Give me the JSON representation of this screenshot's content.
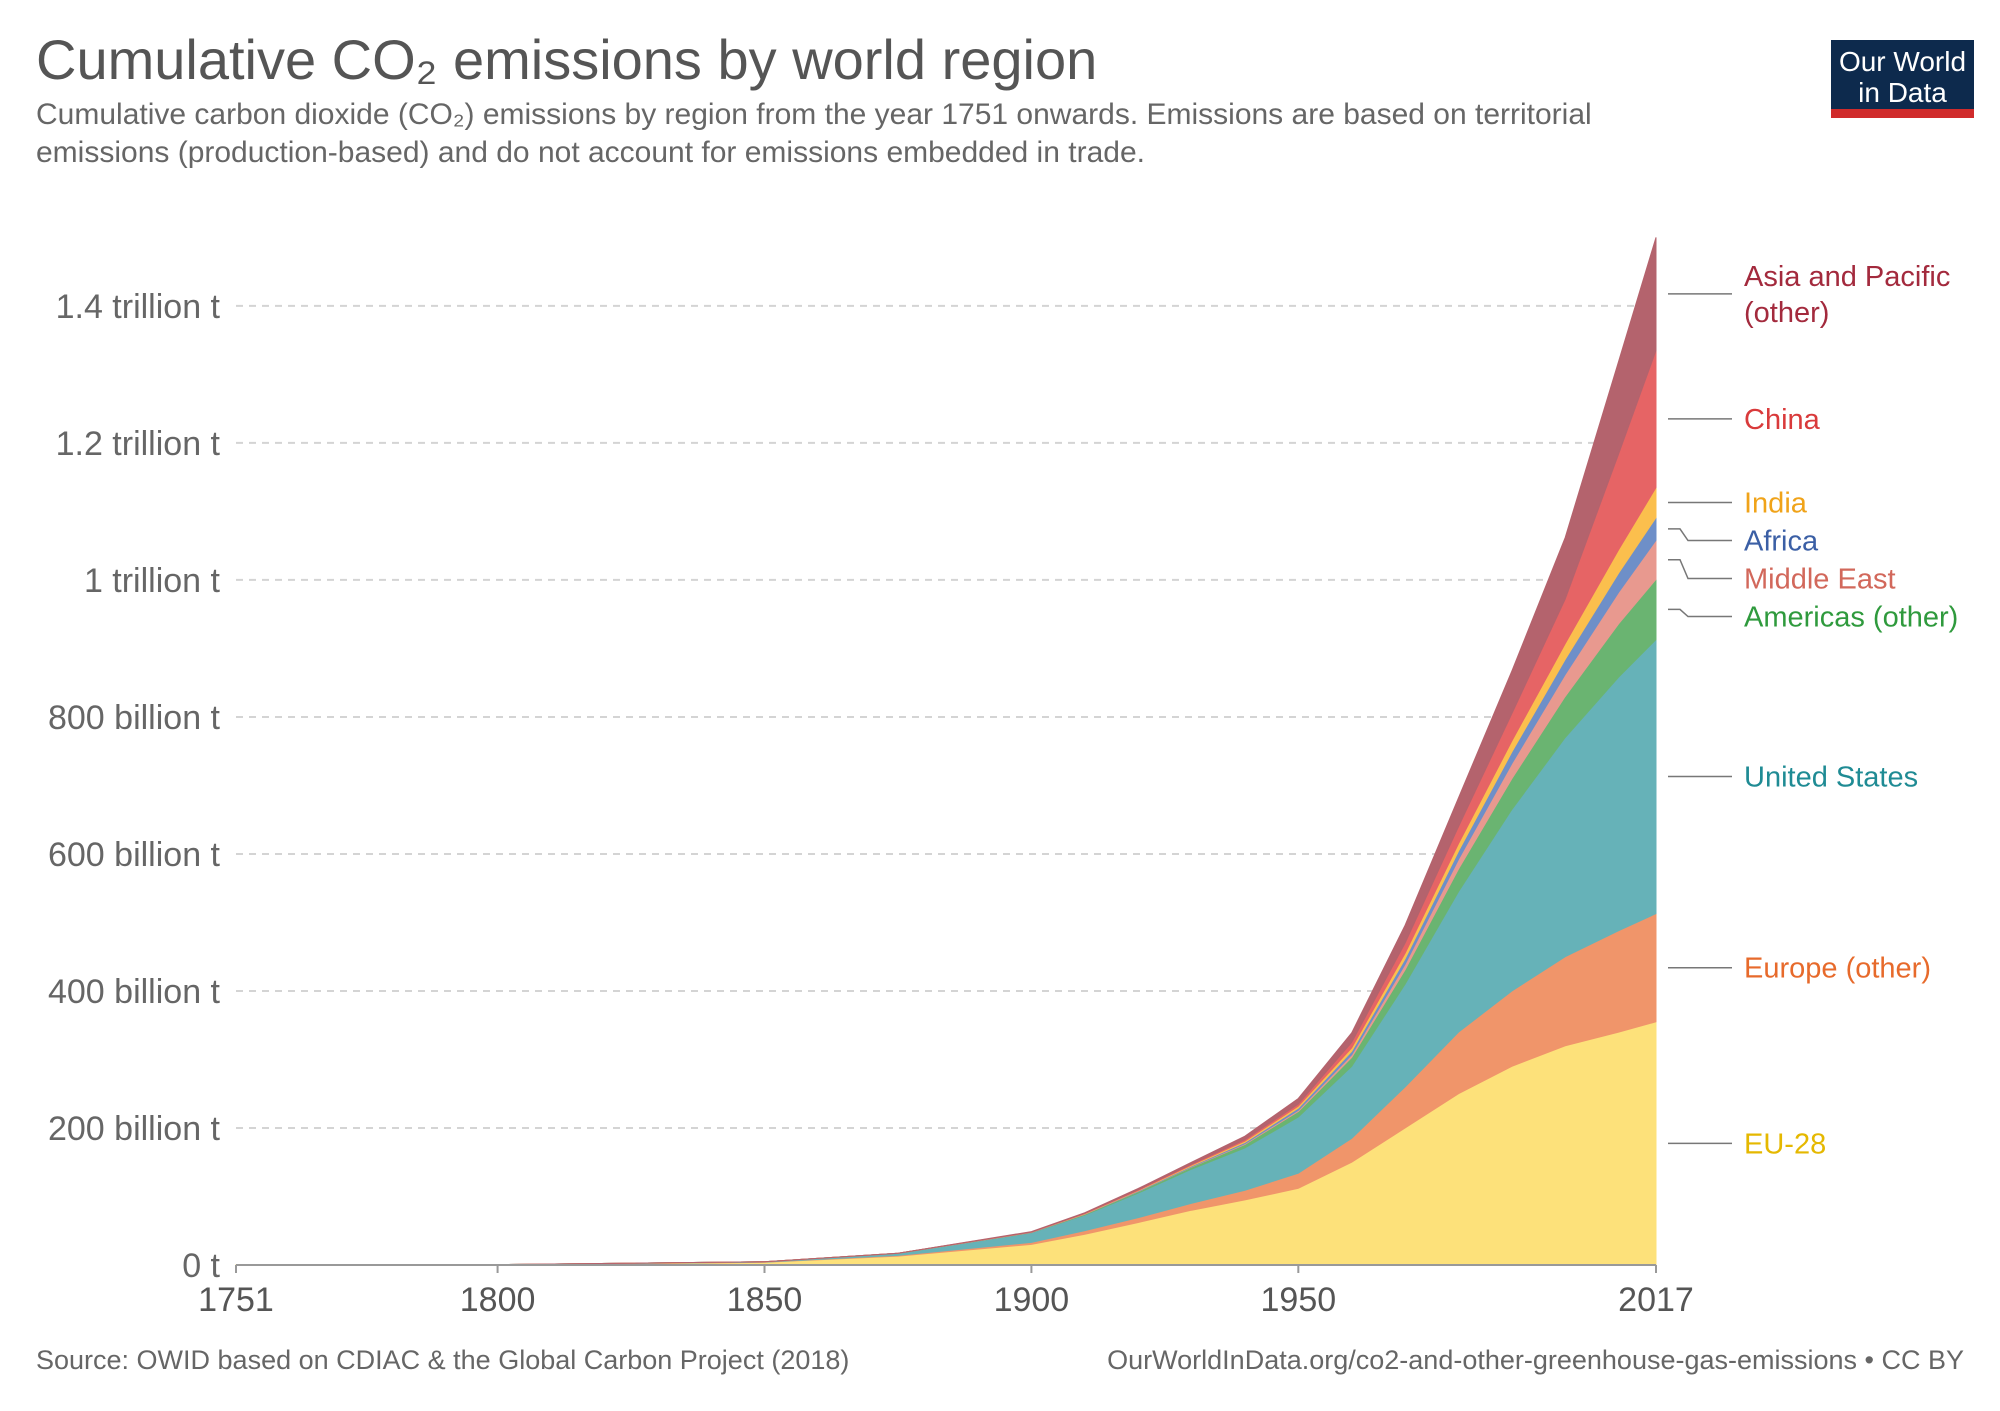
{
  "title": "Cumulative CO₂ emissions by world region",
  "subtitle": "Cumulative carbon dioxide (CO₂) emissions by region from the year 1751 onwards. Emissions are based on territorial emissions (production-based) and do not account for emissions embedded in trade.",
  "logo": {
    "line1": "Our World",
    "line2": "in Data"
  },
  "footer": {
    "source": "Source: OWID based on CDIAC & the Global Carbon Project (2018)",
    "url": "OurWorldInData.org/co2-and-other-greenhouse-gas-emissions • CC BY"
  },
  "chart_data": {
    "type": "area",
    "stacked": true,
    "title": "Cumulative CO₂ emissions by world region",
    "xlabel": "",
    "ylabel": "",
    "x": [
      1751,
      1800,
      1850,
      1875,
      1900,
      1910,
      1920,
      1930,
      1940,
      1950,
      1960,
      1970,
      1980,
      1990,
      2000,
      2010,
      2017
    ],
    "xlim": [
      1751,
      2017
    ],
    "ylim": [
      0,
      1540000000000
    ],
    "x_ticks": [
      {
        "value": 1751,
        "label": "1751"
      },
      {
        "value": 1800,
        "label": "1800"
      },
      {
        "value": 1850,
        "label": "1850"
      },
      {
        "value": 1900,
        "label": "1900"
      },
      {
        "value": 1950,
        "label": "1950"
      },
      {
        "value": 2017,
        "label": "2017"
      }
    ],
    "y_ticks": [
      {
        "value": 0,
        "label": "0 t"
      },
      {
        "value": 200000000000,
        "label": "200 billion t"
      },
      {
        "value": 400000000000,
        "label": "400 billion t"
      },
      {
        "value": 600000000000,
        "label": "600 billion t"
      },
      {
        "value": 800000000000,
        "label": "800 billion t"
      },
      {
        "value": 1000000000000,
        "label": "1 trillion t"
      },
      {
        "value": 1200000000000,
        "label": "1.2 trillion t"
      },
      {
        "value": 1400000000000,
        "label": "1.4 trillion t"
      }
    ],
    "grid": true,
    "legend": "right",
    "series": [
      {
        "name": "EU-28",
        "labelLines": [
          "EU-28"
        ],
        "color": "#fde17a",
        "textColor": "#e5b800",
        "values": [
          0.1,
          0.5,
          4,
          13,
          30,
          45,
          62,
          80,
          95,
          112,
          150,
          200,
          250,
          290,
          320,
          340,
          355
        ]
      },
      {
        "name": "Europe (other)",
        "labelLines": [
          "Europe (other)"
        ],
        "color": "#f0956a",
        "textColor": "#e76a2b",
        "values": [
          0,
          0,
          0.3,
          1,
          3,
          5,
          7,
          10,
          14,
          22,
          35,
          60,
          90,
          110,
          130,
          148,
          158
        ]
      },
      {
        "name": "United States",
        "labelLines": [
          "United States"
        ],
        "color": "#66b2b8",
        "textColor": "#1f8b94",
        "values": [
          0,
          0.02,
          0.5,
          3,
          14,
          23,
          36,
          50,
          62,
          82,
          105,
          150,
          205,
          265,
          320,
          370,
          400
        ]
      },
      {
        "name": "Americas (other)",
        "labelLines": [
          "Americas (other)"
        ],
        "color": "#6ab471",
        "textColor": "#2f9a3d",
        "values": [
          0,
          0,
          0,
          0.1,
          0.5,
          1,
          2,
          3,
          5,
          8,
          13,
          21,
          33,
          45,
          60,
          78,
          88
        ]
      },
      {
        "name": "Middle East",
        "labelLines": [
          "Middle East"
        ],
        "color": "#e8998f",
        "textColor": "#d2685b",
        "values": [
          0,
          0,
          0,
          0,
          0,
          0.1,
          0.3,
          0.5,
          1,
          2,
          4,
          8,
          14,
          22,
          32,
          46,
          57
        ]
      },
      {
        "name": "Africa",
        "labelLines": [
          "Africa"
        ],
        "color": "#6e8fc8",
        "textColor": "#3b5fa5",
        "values": [
          0,
          0,
          0,
          0,
          0.2,
          0.4,
          0.8,
          1.2,
          2,
          3,
          5,
          8,
          12,
          17,
          22,
          28,
          33
        ]
      },
      {
        "name": "India",
        "labelLines": [
          "India"
        ],
        "color": "#fbbf4d",
        "textColor": "#f0a319",
        "values": [
          0,
          0,
          0,
          0,
          0.2,
          0.4,
          0.8,
          1.2,
          2,
          3,
          5,
          8,
          11,
          16,
          23,
          34,
          44
        ]
      },
      {
        "name": "China",
        "labelLines": [
          "China"
        ],
        "color": "#e66465",
        "textColor": "#d93a3b",
        "values": [
          0,
          0,
          0,
          0,
          0.3,
          0.5,
          0.8,
          1.2,
          2,
          3,
          8,
          15,
          25,
          40,
          65,
          140,
          200
        ]
      },
      {
        "name": "Asia and Pacific (other)",
        "labelLines": [
          "Asia and Pacific",
          "(other)"
        ],
        "color": "#b4636d",
        "textColor": "#a32a3d",
        "values": [
          0,
          0,
          0,
          0.1,
          0.5,
          1,
          2,
          3,
          5,
          8,
          14,
          26,
          42,
          62,
          90,
          135,
          165
        ]
      }
    ]
  }
}
